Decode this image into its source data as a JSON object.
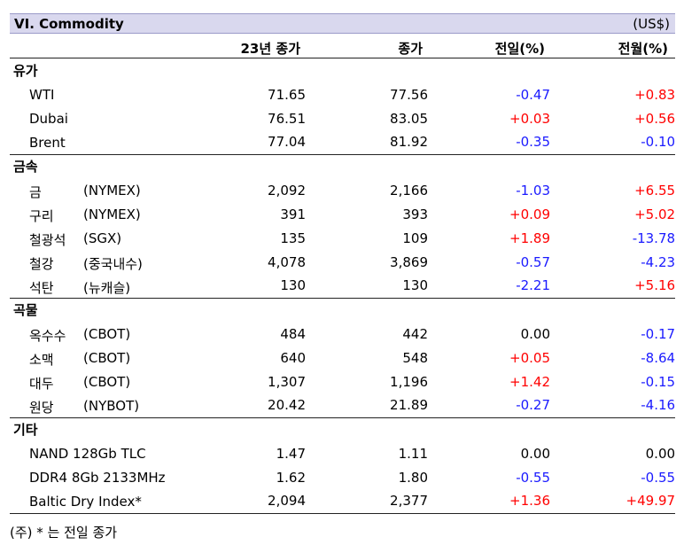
{
  "header": {
    "title": "VI. Commodity",
    "unit": "(US$)"
  },
  "columns": {
    "c1": "23년 종가",
    "c2": "종가",
    "c3": "전일(%)",
    "c4": "전월(%)"
  },
  "sections": [
    {
      "name": "유가",
      "rows": [
        {
          "name": "WTI",
          "sub": "",
          "v1": "71.65",
          "v2": "77.56",
          "d": "-0.47",
          "m": "+0.83"
        },
        {
          "name": "Dubai",
          "sub": "",
          "v1": "76.51",
          "v2": "83.05",
          "d": "+0.03",
          "m": "+0.56"
        },
        {
          "name": "Brent",
          "sub": "",
          "v1": "77.04",
          "v2": "81.92",
          "d": "-0.35",
          "m": "-0.10"
        }
      ]
    },
    {
      "name": "금속",
      "rows": [
        {
          "name": "금",
          "sub": "(NYMEX)",
          "v1": "2,092",
          "v2": "2,166",
          "d": "-1.03",
          "m": "+6.55"
        },
        {
          "name": "구리",
          "sub": "(NYMEX)",
          "v1": "391",
          "v2": "393",
          "d": "+0.09",
          "m": "+5.02"
        },
        {
          "name": "철광석",
          "sub": "(SGX)",
          "v1": "135",
          "v2": "109",
          "d": "+1.89",
          "m": "-13.78"
        },
        {
          "name": "철강",
          "sub": "(중국내수)",
          "v1": "4,078",
          "v2": "3,869",
          "d": "-0.57",
          "m": "-4.23"
        },
        {
          "name": "석탄",
          "sub": "(뉴캐슬)",
          "v1": "130",
          "v2": "130",
          "d": "-2.21",
          "m": "+5.16"
        }
      ]
    },
    {
      "name": "곡물",
      "rows": [
        {
          "name": "옥수수",
          "sub": "(CBOT)",
          "v1": "484",
          "v2": "442",
          "d": "0.00",
          "m": "-0.17"
        },
        {
          "name": "소맥",
          "sub": "(CBOT)",
          "v1": "640",
          "v2": "548",
          "d": "+0.05",
          "m": "-8.64"
        },
        {
          "name": "대두",
          "sub": "(CBOT)",
          "v1": "1,307",
          "v2": "1,196",
          "d": "+1.42",
          "m": "-0.15"
        },
        {
          "name": "원당",
          "sub": "(NYBOT)",
          "v1": "20.42",
          "v2": "21.89",
          "d": "-0.27",
          "m": "-4.16"
        }
      ]
    },
    {
      "name": "기타",
      "rows": [
        {
          "name": "NAND 128Gb TLC",
          "sub": "",
          "v1": "1.47",
          "v2": "1.11",
          "d": "0.00",
          "m": "0.00"
        },
        {
          "name": "DDR4 8Gb 2133MHz",
          "sub": "",
          "v1": "1.62",
          "v2": "1.80",
          "d": "-0.55",
          "m": "-0.55"
        },
        {
          "name": "Baltic Dry Index*",
          "sub": "",
          "v1": "2,094",
          "v2": "2,377",
          "d": "+1.36",
          "m": "+49.97"
        }
      ]
    }
  ],
  "footnote": "(주) * 는 전일 종가",
  "colors": {
    "positive": "#ff0000",
    "negative": "#1a1aff",
    "title_bg": "#d9d8ee"
  }
}
